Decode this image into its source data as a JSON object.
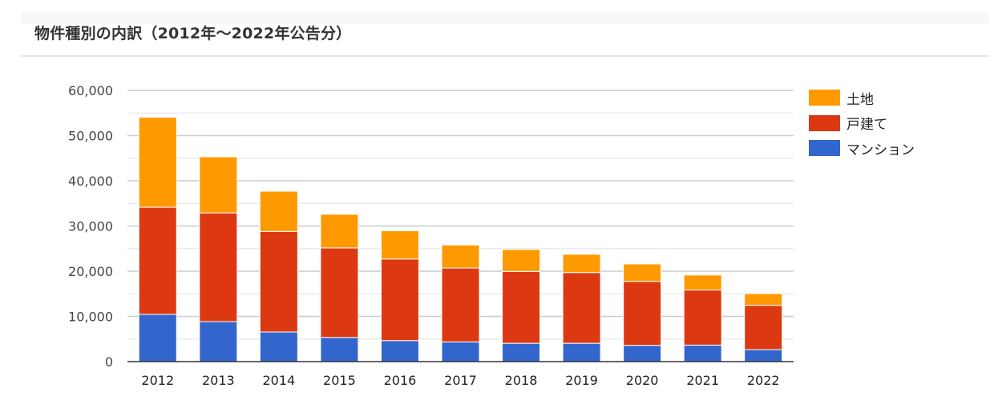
{
  "header": {
    "title": "物件種別の内訳（2012年～2022年公告分）"
  },
  "legend": [
    {
      "label": "土地",
      "color": "#ff9900"
    },
    {
      "label": "戸建て",
      "color": "#dc3912"
    },
    {
      "label": "マンション",
      "color": "#3366cc"
    }
  ],
  "chart_data": {
    "type": "bar",
    "stacked": true,
    "title": "物件種別の内訳（2012年～2022年公告分）",
    "xlabel": "",
    "ylabel": "",
    "categories": [
      "2012",
      "2013",
      "2014",
      "2015",
      "2016",
      "2017",
      "2018",
      "2019",
      "2020",
      "2021",
      "2022"
    ],
    "series": [
      {
        "name": "マンション",
        "color": "#3366cc",
        "values": [
          10450,
          8850,
          6550,
          5350,
          4650,
          4350,
          4050,
          4050,
          3600,
          3650,
          2650
        ]
      },
      {
        "name": "戸建て",
        "color": "#dc3912",
        "values": [
          23700,
          24050,
          22250,
          19800,
          18050,
          16350,
          15900,
          15650,
          14150,
          12200,
          9800
        ]
      },
      {
        "name": "土地",
        "color": "#ff9900",
        "values": [
          19900,
          12400,
          8900,
          7450,
          6250,
          5100,
          4850,
          4050,
          3850,
          3300,
          2600
        ]
      }
    ],
    "y_ticks": [
      "0",
      "10,000",
      "20,000",
      "30,000",
      "40,000",
      "50,000",
      "60,000"
    ],
    "ylim": [
      0,
      60000
    ],
    "grid": true,
    "minor_grid_step": 5000,
    "legend_position": "right"
  }
}
